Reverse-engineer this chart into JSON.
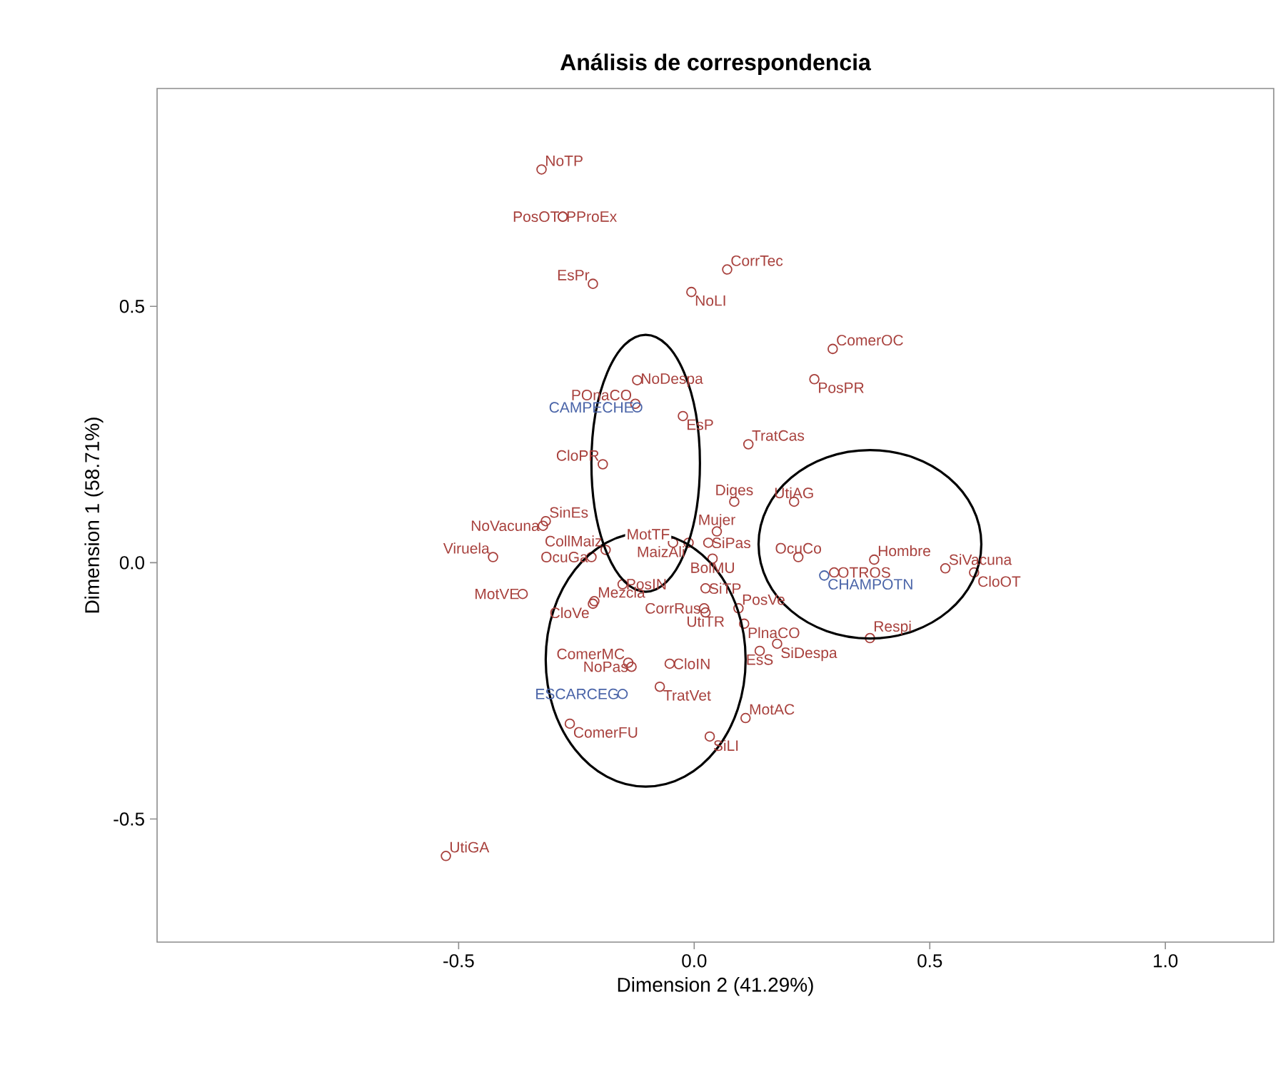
{
  "chart_data": {
    "type": "scatter",
    "title": "Análisis de correspondencia",
    "xlabel": "Dimension 2 (41.29%)",
    "ylabel": "Dimension 1 (58.71%)",
    "xlim": [
      -1.14,
      1.23
    ],
    "ylim": [
      -0.74,
      0.925
    ],
    "xticks": [
      {
        "value": -0.5,
        "label": "-0.5"
      },
      {
        "value": 0,
        "label": "0.0"
      },
      {
        "value": 0.5,
        "label": "0.5"
      },
      {
        "value": 1,
        "label": "1.0"
      }
    ],
    "yticks": [
      {
        "value": -0.5,
        "label": "-0.5"
      },
      {
        "value": 0,
        "label": "0.0"
      },
      {
        "value": 0.5,
        "label": "0.5"
      }
    ],
    "marker": "circle",
    "grid": false,
    "series": [
      {
        "name": "NoTP",
        "color": "#a8413d",
        "x": [
          -0.324
        ],
        "values": [
          0.767
        ]
      },
      {
        "name": "PosOT",
        "color": "#a8413d",
        "x": [
          -0.279
        ],
        "values": [
          0.675
        ]
      },
      {
        "name": "PProEx",
        "color": "#a8413d",
        "x": [
          -0.279
        ],
        "values": [
          0.675
        ]
      },
      {
        "name": "EsPr",
        "color": "#a8413d",
        "x": [
          -0.215
        ],
        "values": [
          0.544
        ]
      },
      {
        "name": "CorrTec",
        "color": "#a8413d",
        "x": [
          0.07
        ],
        "values": [
          0.572
        ]
      },
      {
        "name": "NoLI",
        "color": "#a8413d",
        "x": [
          -0.006
        ],
        "values": [
          0.528
        ]
      },
      {
        "name": "ComerOC",
        "color": "#a8413d",
        "x": [
          0.294
        ],
        "values": [
          0.417
        ]
      },
      {
        "name": "PosPR",
        "color": "#a8413d",
        "x": [
          0.255
        ],
        "values": [
          0.358
        ]
      },
      {
        "name": "NoDespa",
        "color": "#a8413d",
        "x": [
          -0.121
        ],
        "values": [
          0.356
        ]
      },
      {
        "name": "POnaCO",
        "color": "#a8413d",
        "x": [
          -0.125
        ],
        "values": [
          0.31
        ]
      },
      {
        "name": "CAMPECHE",
        "color": "#4a64a8",
        "x": [
          -0.121
        ],
        "values": [
          0.303
        ]
      },
      {
        "name": "EsP",
        "color": "#a8413d",
        "x": [
          -0.024
        ],
        "values": [
          0.286
        ]
      },
      {
        "name": "TratCas",
        "color": "#a8413d",
        "x": [
          0.115
        ],
        "values": [
          0.231
        ]
      },
      {
        "name": "CloPR",
        "color": "#a8413d",
        "x": [
          -0.194
        ],
        "values": [
          0.192
        ]
      },
      {
        "name": "Diges",
        "color": "#a8413d",
        "x": [
          0.085
        ],
        "values": [
          0.119
        ]
      },
      {
        "name": "UtiAG",
        "color": "#a8413d",
        "x": [
          0.212
        ],
        "values": [
          0.119
        ]
      },
      {
        "name": "SinEs",
        "color": "#a8413d",
        "x": [
          -0.315
        ],
        "values": [
          0.081
        ]
      },
      {
        "name": "NoVacuna",
        "color": "#a8413d",
        "x": [
          -0.321
        ],
        "values": [
          0.072
        ]
      },
      {
        "name": "Viruela",
        "color": "#a8413d",
        "x": [
          -0.427
        ],
        "values": [
          0.011
        ]
      },
      {
        "name": "OcuGa",
        "color": "#a8413d",
        "x": [
          -0.218
        ],
        "values": [
          0.011
        ]
      },
      {
        "name": "CollMaiz",
        "color": "#a8413d",
        "x": [
          -0.188
        ],
        "values": [
          0.025
        ]
      },
      {
        "name": "MotTF",
        "color": "#a8413d",
        "x": [
          -0.045
        ],
        "values": [
          0.039
        ]
      },
      {
        "name": "Mujer",
        "color": "#a8413d",
        "x": [
          0.048
        ],
        "values": [
          0.061
        ]
      },
      {
        "name": "SiPas",
        "color": "#a8413d",
        "x": [
          0.03
        ],
        "values": [
          0.039
        ]
      },
      {
        "name": "MaizAli",
        "color": "#a8413d",
        "x": [
          -0.012
        ],
        "values": [
          0.039
        ]
      },
      {
        "name": "BolMU",
        "color": "#a8413d",
        "x": [
          0.039
        ],
        "values": [
          0.008
        ]
      },
      {
        "name": "OcuCo",
        "color": "#a8413d",
        "x": [
          0.221
        ],
        "values": [
          0.011
        ]
      },
      {
        "name": "Hombre",
        "color": "#a8413d",
        "x": [
          0.382
        ],
        "values": [
          0.006
        ]
      },
      {
        "name": "SiVacuna",
        "color": "#a8413d",
        "x": [
          0.533
        ],
        "values": [
          -0.011
        ]
      },
      {
        "name": "CloOT",
        "color": "#a8413d",
        "x": [
          0.594
        ],
        "values": [
          -0.019
        ]
      },
      {
        "name": "OTROS",
        "color": "#a8413d",
        "x": [
          0.297
        ],
        "values": [
          -0.019
        ]
      },
      {
        "name": "CHAMPOTN",
        "color": "#4a64a8",
        "x": [
          0.276
        ],
        "values": [
          -0.025
        ]
      },
      {
        "name": "Respi",
        "color": "#a8413d",
        "x": [
          0.373
        ],
        "values": [
          -0.147
        ]
      },
      {
        "name": "MotVE",
        "color": "#a8413d",
        "x": [
          -0.364
        ],
        "values": [
          -0.061
        ]
      },
      {
        "name": "Mezcla",
        "color": "#a8413d",
        "x": [
          -0.212
        ],
        "values": [
          -0.075
        ]
      },
      {
        "name": "PosIN",
        "color": "#a8413d",
        "x": [
          -0.152
        ],
        "values": [
          -0.042
        ]
      },
      {
        "name": "CloVe",
        "color": "#a8413d",
        "x": [
          -0.215
        ],
        "values": [
          -0.08
        ]
      },
      {
        "name": "SiTP",
        "color": "#a8413d",
        "x": [
          0.024
        ],
        "values": [
          -0.05
        ]
      },
      {
        "name": "CorrRus",
        "color": "#a8413d",
        "x": [
          0.021
        ],
        "values": [
          -0.089
        ]
      },
      {
        "name": "UtiTR",
        "color": "#a8413d",
        "x": [
          0.024
        ],
        "values": [
          -0.097
        ]
      },
      {
        "name": "PosVe",
        "color": "#a8413d",
        "x": [
          0.094
        ],
        "values": [
          -0.089
        ]
      },
      {
        "name": "PlnaCO",
        "color": "#a8413d",
        "x": [
          0.106
        ],
        "values": [
          -0.119
        ]
      },
      {
        "name": "SiDespa",
        "color": "#a8413d",
        "x": [
          0.176
        ],
        "values": [
          -0.158
        ]
      },
      {
        "name": "EsS",
        "color": "#a8413d",
        "x": [
          0.139
        ],
        "values": [
          -0.172
        ]
      },
      {
        "name": "CloIN",
        "color": "#a8413d",
        "x": [
          -0.052
        ],
        "values": [
          -0.197
        ]
      },
      {
        "name": "ComerMC",
        "color": "#a8413d",
        "x": [
          -0.14
        ],
        "values": [
          -0.195
        ]
      },
      {
        "name": "NoPas",
        "color": "#a8413d",
        "x": [
          -0.133
        ],
        "values": [
          -0.203
        ]
      },
      {
        "name": "ESCARCEG",
        "color": "#4a64a8",
        "x": [
          -0.152
        ],
        "values": [
          -0.256
        ]
      },
      {
        "name": "TratVet",
        "color": "#a8413d",
        "x": [
          -0.073
        ],
        "values": [
          -0.242
        ]
      },
      {
        "name": "MotAC",
        "color": "#a8413d",
        "x": [
          0.109
        ],
        "values": [
          -0.303
        ]
      },
      {
        "name": "ComerFU",
        "color": "#a8413d",
        "x": [
          -0.264
        ],
        "values": [
          -0.314
        ]
      },
      {
        "name": "SiLI",
        "color": "#a8413d",
        "x": [
          0.033
        ],
        "values": [
          -0.339
        ]
      },
      {
        "name": "UtiGA",
        "color": "#a8413d",
        "x": [
          -0.527
        ],
        "values": [
          -0.572
        ]
      }
    ]
  }
}
